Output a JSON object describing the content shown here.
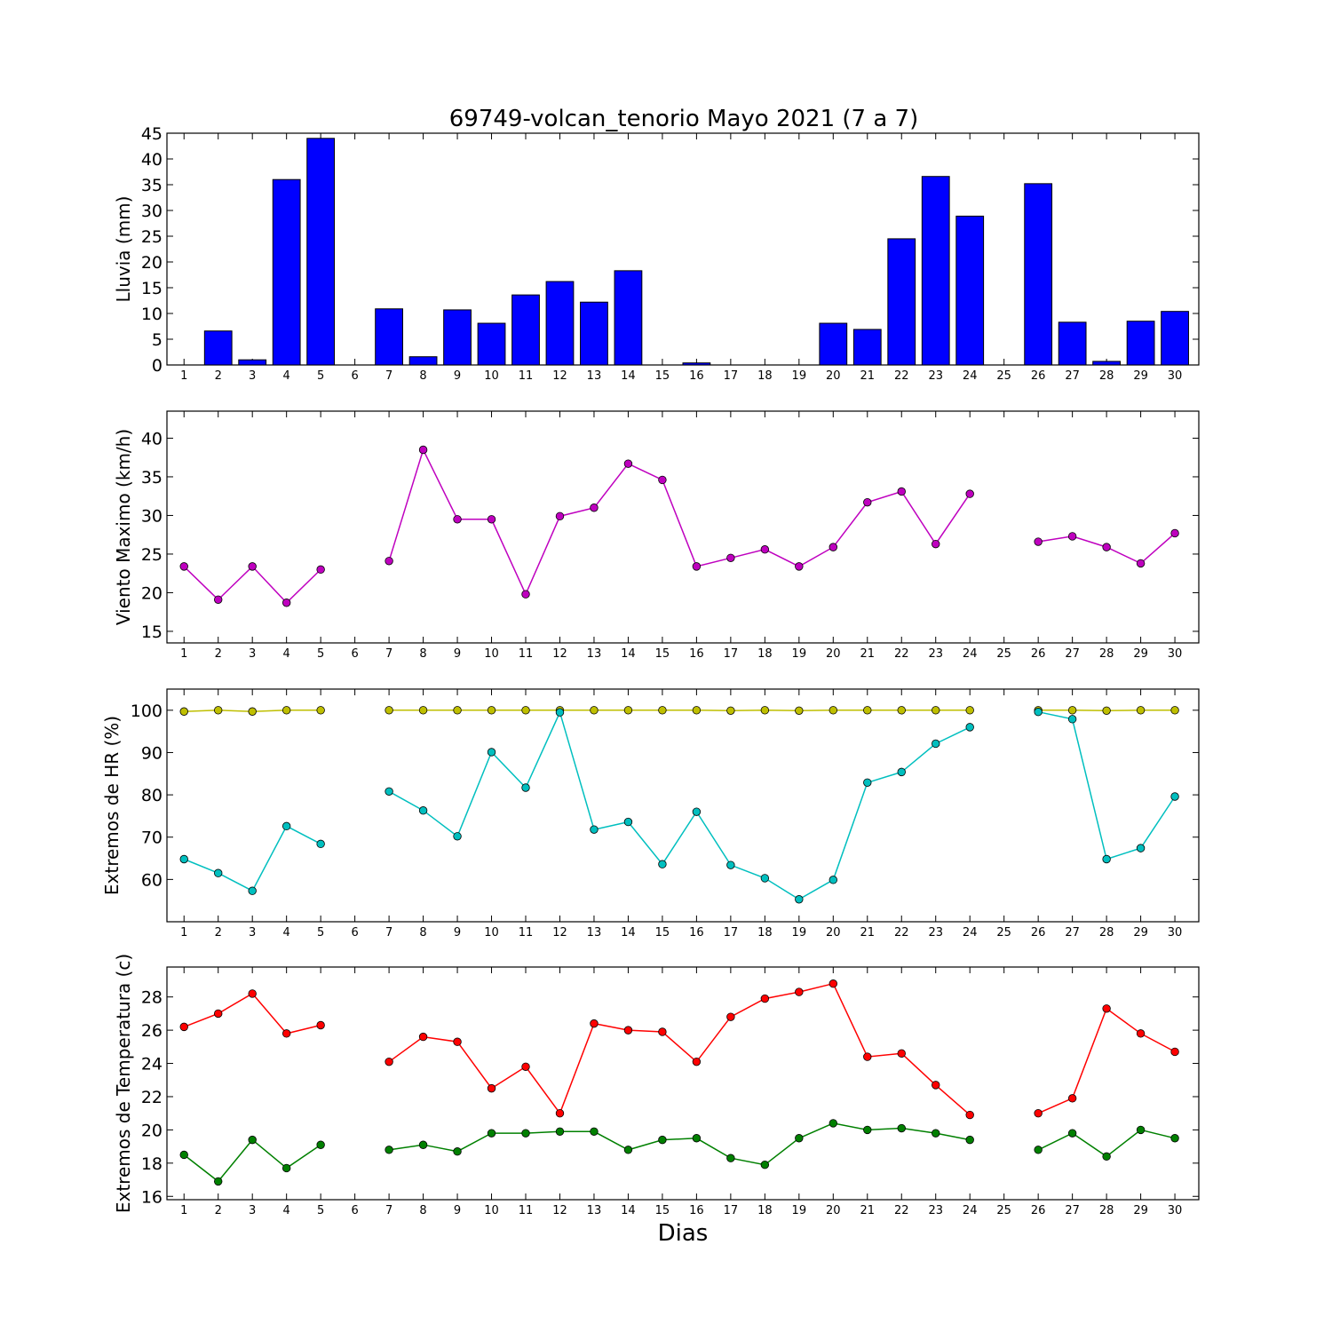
{
  "chart_data": {
    "title": "69749-volcan_tenorio Mayo 2021  (7 a 7)",
    "xlabel": "Dias",
    "days": [
      1,
      2,
      3,
      4,
      5,
      6,
      7,
      8,
      9,
      10,
      11,
      12,
      13,
      14,
      15,
      16,
      17,
      18,
      19,
      20,
      21,
      22,
      23,
      24,
      25,
      26,
      27,
      28,
      29,
      30
    ],
    "panels": [
      {
        "id": "lluvia",
        "type": "bar",
        "ylabel": "Lluvia (mm)",
        "ylim": [
          0,
          45
        ],
        "yticks": [
          0,
          5,
          10,
          15,
          20,
          25,
          30,
          35,
          40,
          45
        ],
        "bar_color": "#0000ff",
        "series": [
          {
            "values": [
              0,
              6.6,
              1.0,
              36.0,
              44.0,
              null,
              10.9,
              1.6,
              10.7,
              8.1,
              13.6,
              16.2,
              12.2,
              18.3,
              0,
              0.4,
              0,
              0,
              0,
              8.1,
              6.9,
              24.5,
              36.6,
              28.9,
              null,
              35.2,
              8.3,
              0.7,
              8.5,
              10.4
            ]
          }
        ]
      },
      {
        "id": "viento",
        "type": "line",
        "ylabel": "Viento Maximo (km/h)",
        "ylim": [
          13.5,
          43.5
        ],
        "yticks": [
          15,
          20,
          25,
          30,
          35,
          40
        ],
        "series": [
          {
            "color": "#bf00bf",
            "values": [
              23.4,
              19.1,
              23.4,
              18.7,
              23.0,
              null,
              24.1,
              38.5,
              29.5,
              29.5,
              19.8,
              29.9,
              31.0,
              36.7,
              34.6,
              23.4,
              24.5,
              25.6,
              23.4,
              25.9,
              31.7,
              33.1,
              26.3,
              32.8,
              null,
              26.6,
              27.3,
              25.9,
              23.8,
              27.7
            ]
          }
        ]
      },
      {
        "id": "hr",
        "type": "line",
        "ylabel": "Extremos de HR (%)",
        "ylim": [
          50,
          105
        ],
        "yticks": [
          60,
          70,
          80,
          90,
          100
        ],
        "series": [
          {
            "color": "#bfbf00",
            "values": [
              99.7,
              100,
              99.7,
              100,
              100,
              null,
              100,
              100,
              100,
              100,
              100,
              100,
              100,
              100,
              100,
              100,
              99.9,
              100,
              99.9,
              100,
              100,
              100,
              100,
              100,
              null,
              100,
              100,
              99.9,
              100,
              100
            ]
          },
          {
            "color": "#00bfbf",
            "values": [
              64.8,
              61.5,
              57.3,
              72.6,
              68.4,
              null,
              80.8,
              76.3,
              70.2,
              90.1,
              81.7,
              99.5,
              71.8,
              73.6,
              63.6,
              76.0,
              63.4,
              60.3,
              55.3,
              59.9,
              82.9,
              85.4,
              92.1,
              96.0,
              null,
              99.6,
              97.9,
              64.8,
              67.4,
              79.6
            ]
          }
        ]
      },
      {
        "id": "temp",
        "type": "line",
        "ylabel": "Extremos de Temperatura (c)",
        "ylim": [
          15.8,
          29.8
        ],
        "yticks": [
          16,
          18,
          20,
          22,
          24,
          26,
          28
        ],
        "series": [
          {
            "color": "#ff0000",
            "values": [
              26.2,
              27.0,
              28.2,
              25.8,
              26.3,
              null,
              24.1,
              25.6,
              25.3,
              22.5,
              23.8,
              21.0,
              26.4,
              26.0,
              25.9,
              24.1,
              26.8,
              27.9,
              28.3,
              28.8,
              24.4,
              24.6,
              22.7,
              20.9,
              null,
              21.0,
              21.9,
              27.3,
              25.8,
              24.7
            ]
          },
          {
            "color": "#008000",
            "values": [
              18.5,
              16.9,
              19.4,
              17.7,
              19.1,
              null,
              18.8,
              19.1,
              18.7,
              19.8,
              19.8,
              19.9,
              19.9,
              18.8,
              19.4,
              19.5,
              18.3,
              17.9,
              19.5,
              20.4,
              20.0,
              20.1,
              19.8,
              19.4,
              null,
              18.8,
              19.8,
              18.4,
              20.0,
              19.5
            ]
          }
        ]
      }
    ]
  }
}
